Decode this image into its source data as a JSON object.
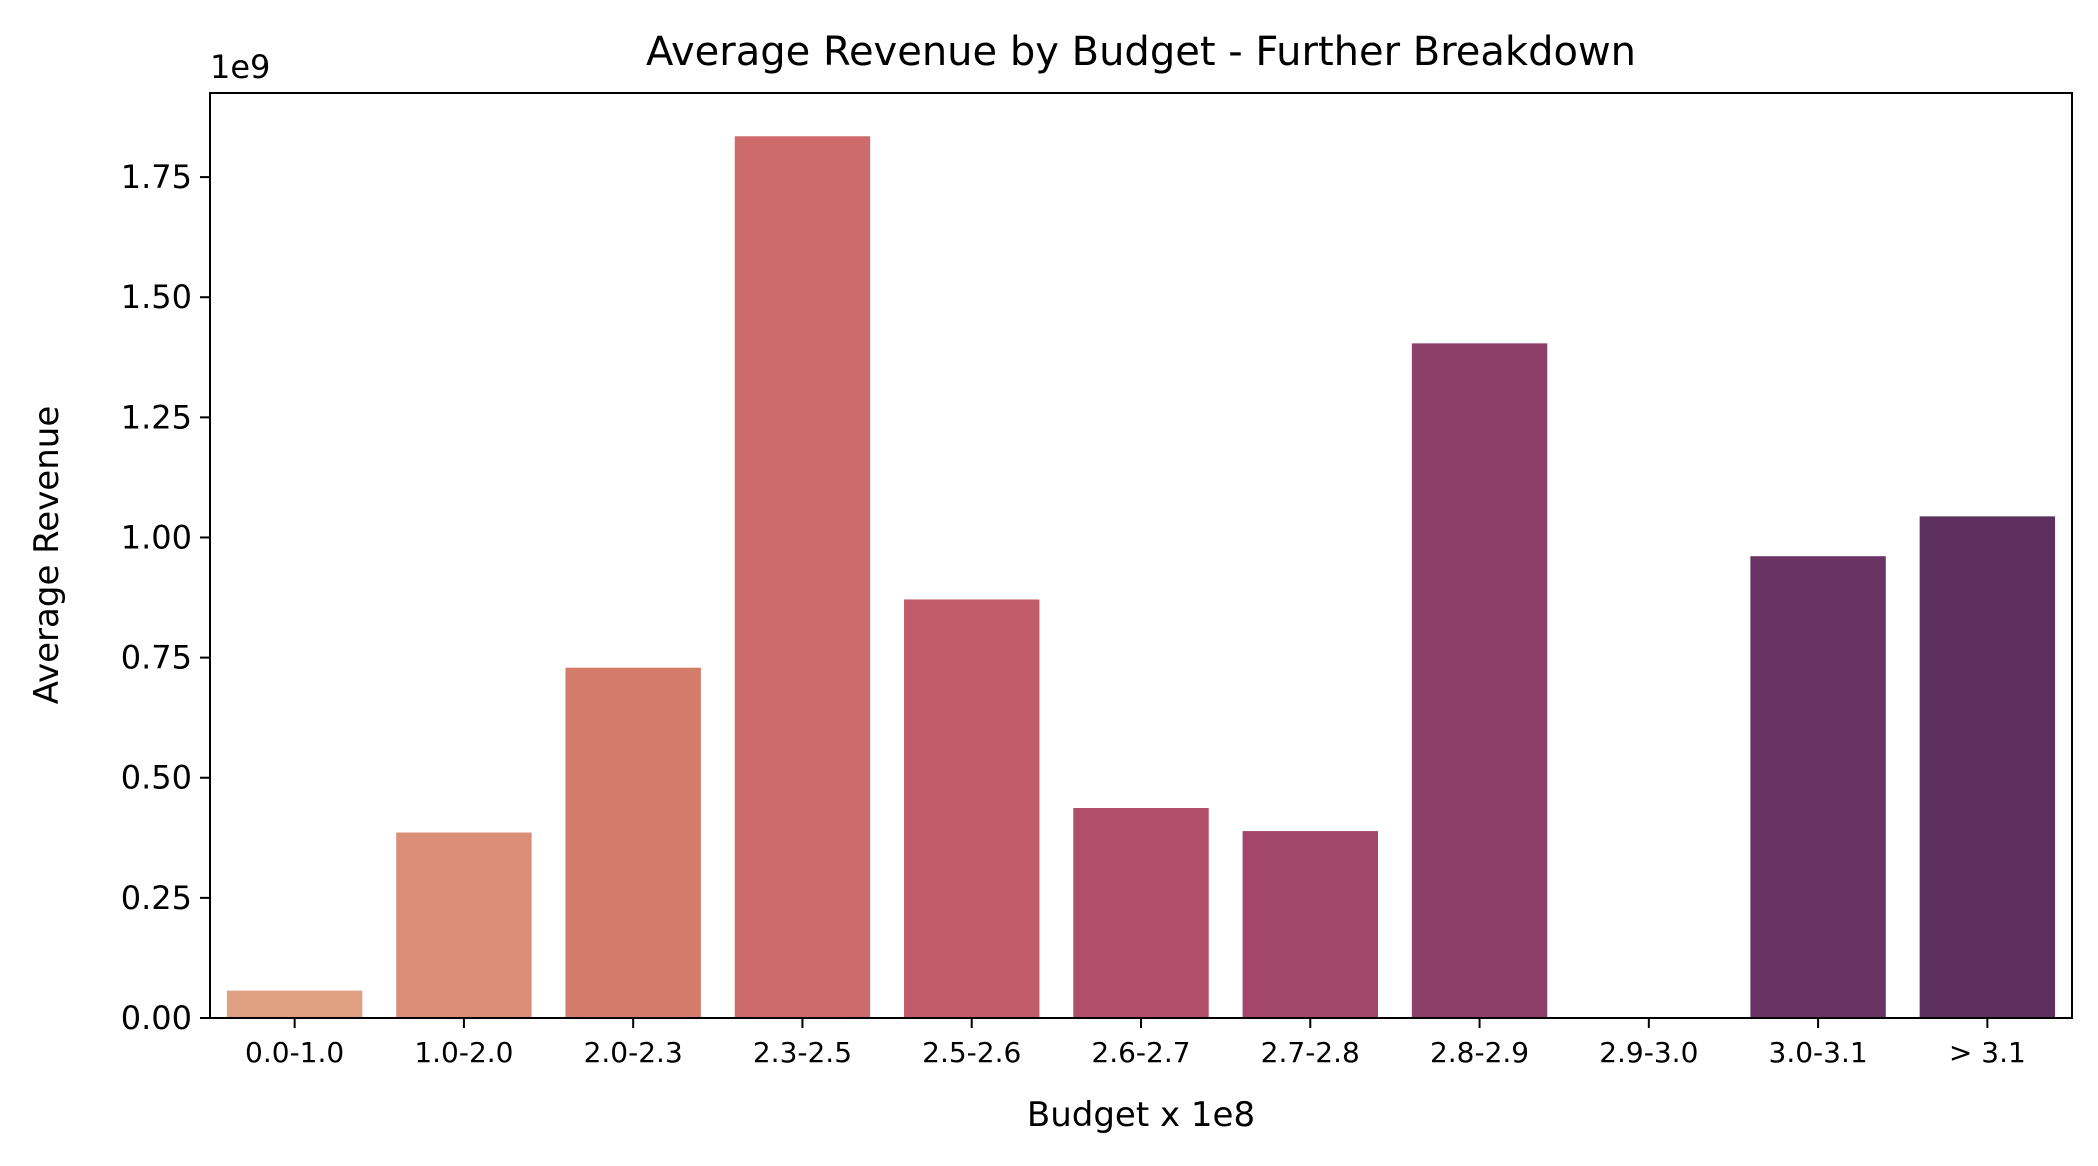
{
  "chart_data": {
    "type": "bar",
    "title": "Average Revenue by Budget - Further Breakdown",
    "xlabel": "Budget x 1e8",
    "ylabel": "Average Revenue",
    "y_offset_label": "1e9",
    "categories": [
      "0.0-1.0",
      "1.0-2.0",
      "2.0-2.3",
      "2.3-2.5",
      "2.5-2.6",
      "2.6-2.7",
      "2.7-2.8",
      "2.8-2.9",
      "2.9-3.0",
      "3.0-3.1",
      "> 3.1"
    ],
    "values": [
      0.057,
      0.386,
      0.729,
      1.835,
      0.871,
      0.437,
      0.389,
      1.404,
      0.0,
      0.961,
      1.044
    ],
    "value_multiplier": 1000000000,
    "ylim": [
      0,
      1.925
    ],
    "yticks": [
      0.0,
      0.25,
      0.5,
      0.75,
      1.0,
      1.25,
      1.5,
      1.75
    ],
    "ytick_labels": [
      "0.00",
      "0.25",
      "0.50",
      "0.75",
      "1.00",
      "1.25",
      "1.50",
      "1.75"
    ],
    "colors": [
      "#e0a183",
      "#da8e76",
      "#d47c6c",
      "#cd6a6b",
      "#c25c6a",
      "#b14e6a",
      "#a24769",
      "#8c4069",
      "#7b3767",
      "#693463",
      "#5c2f5f"
    ],
    "grid": false,
    "legend": "none"
  }
}
